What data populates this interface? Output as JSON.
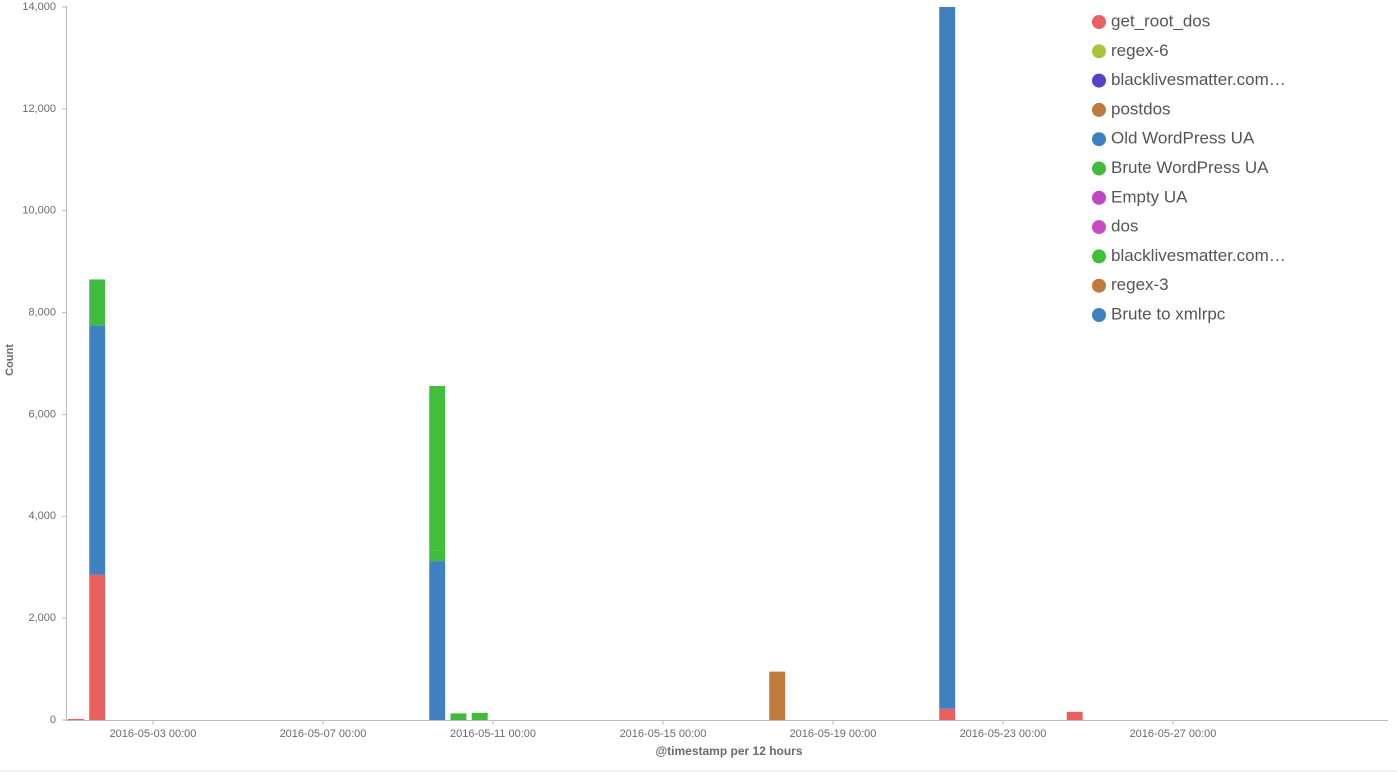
{
  "chart_data": {
    "type": "stacked-bar",
    "y_label": "Count",
    "x_label": "@timestamp per 12 hours",
    "x": [
      "2016-05-01 00:00",
      "2016-05-01 12:00",
      "2016-05-09 12:00",
      "2016-05-10 00:00",
      "2016-05-10 12:00",
      "2016-05-17 12:00",
      "2016-05-21 12:00",
      "2016-05-24 12:00"
    ],
    "xlim": [
      "2016-05-01 00:00",
      "2016-06-01 00:00"
    ],
    "xticks": [
      "2016-05-03 00:00",
      "2016-05-07 00:00",
      "2016-05-11 00:00",
      "2016-05-15 00:00",
      "2016-05-19 00:00",
      "2016-05-23 00:00",
      "2016-05-27 00:00"
    ],
    "ylim": [
      0,
      14000
    ],
    "yticks": [
      0,
      {
        "value": 2000,
        "label": "2,000"
      },
      {
        "value": 4000,
        "label": "4,000"
      },
      {
        "value": 6000,
        "label": "6,000"
      },
      {
        "value": 8000,
        "label": "8,000"
      },
      {
        "value": 10000,
        "label": "10,000"
      },
      {
        "value": 12000,
        "label": "12,000"
      },
      {
        "value": 14000,
        "label": "14,000"
      }
    ],
    "series": [
      {
        "name": "get_root_dos",
        "color": "#e8605f",
        "values": [
          20,
          2850,
          null,
          null,
          null,
          null,
          220,
          160
        ]
      },
      {
        "name": "regex-6",
        "color": "#a8c43a",
        "values": [
          null,
          null,
          null,
          null,
          null,
          null,
          null,
          null
        ]
      },
      {
        "name": "blacklivesmatter.com…",
        "color": "#5b3fc6",
        "values": [
          null,
          null,
          null,
          null,
          null,
          null,
          null,
          null
        ]
      },
      {
        "name": "postdos",
        "color": "#c07a3c",
        "values": [
          null,
          null,
          null,
          null,
          null,
          null,
          null,
          null
        ]
      },
      {
        "name": "Old WordPress UA",
        "color": "#3f80c0",
        "values": [
          null,
          4900,
          3120,
          null,
          null,
          null,
          null,
          null
        ]
      },
      {
        "name": "Brute WordPress UA",
        "color": "#41bb3e",
        "values": [
          null,
          900,
          200,
          130,
          140,
          null,
          null,
          null
        ]
      },
      {
        "name": "Empty UA",
        "color": "#c245c2",
        "values": [
          null,
          null,
          null,
          null,
          null,
          null,
          null,
          null
        ]
      },
      {
        "name": "dos",
        "color": "#c94ac5",
        "values": [
          null,
          null,
          null,
          null,
          null,
          null,
          null,
          null
        ]
      },
      {
        "name": "blacklivesmatter.com…",
        "color": "#3fbf3a",
        "values": [
          null,
          null,
          3240,
          null,
          null,
          null,
          null,
          null
        ]
      },
      {
        "name": "regex-3",
        "color": "#c07a3c",
        "values": [
          null,
          null,
          null,
          null,
          null,
          950,
          null,
          null
        ]
      },
      {
        "name": "Brute to xmlrpc",
        "color": "#3f80c0",
        "values": [
          null,
          null,
          null,
          null,
          null,
          null,
          13780,
          null
        ]
      }
    ]
  }
}
